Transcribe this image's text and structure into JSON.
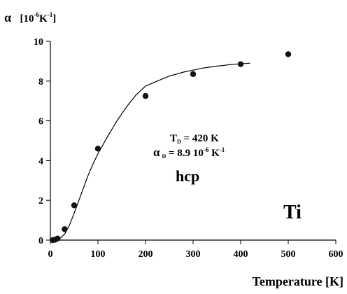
{
  "chart_data": {
    "type": "scatter",
    "ylabel_symbol": "α",
    "ylabel_unit_open": "[10",
    "ylabel_unit_exp": "-6",
    "ylabel_unit_k": "K",
    "ylabel_unit_kexp": "-1",
    "ylabel_unit_close": "]",
    "xlabel": "Temperature [K]",
    "xlim": [
      0,
      600
    ],
    "ylim": [
      0,
      10
    ],
    "xticks": [
      0,
      100,
      200,
      300,
      400,
      500,
      600
    ],
    "yticks": [
      0,
      2,
      4,
      6,
      8,
      10
    ],
    "grid": false,
    "series": [
      {
        "kind": "points",
        "x": [
          5,
          10,
          15,
          30,
          50,
          100,
          200,
          300,
          400,
          500
        ],
        "y": [
          0.0,
          0.02,
          0.08,
          0.55,
          1.75,
          4.6,
          7.25,
          8.35,
          8.85,
          9.35
        ],
        "yerr": [
          0.05,
          0.05,
          0.05,
          0.12,
          0.12,
          0.12,
          0.1,
          0.08,
          0.1,
          0.1
        ]
      },
      {
        "kind": "line",
        "x": [
          0,
          10,
          20,
          30,
          40,
          50,
          60,
          70,
          80,
          90,
          100,
          120,
          140,
          160,
          180,
          200,
          220,
          250,
          280,
          300,
          320,
          350,
          380,
          400,
          420
        ],
        "y": [
          0,
          0.01,
          0.08,
          0.3,
          0.75,
          1.35,
          2.0,
          2.65,
          3.3,
          3.85,
          4.35,
          5.2,
          6.0,
          6.7,
          7.3,
          7.75,
          7.95,
          8.25,
          8.45,
          8.55,
          8.65,
          8.75,
          8.83,
          8.87,
          8.9
        ]
      }
    ],
    "annotations": {
      "td_label": "T",
      "td_sub": "D",
      "td_value": " = 420 K",
      "alpha_label": "α",
      "alpha_sub": "D",
      "alpha_value": " = 8.9 10",
      "alpha_exp1": "-6",
      "alpha_k": " K",
      "alpha_exp2": "-1",
      "structure": "hcp",
      "element": "Ti"
    }
  }
}
